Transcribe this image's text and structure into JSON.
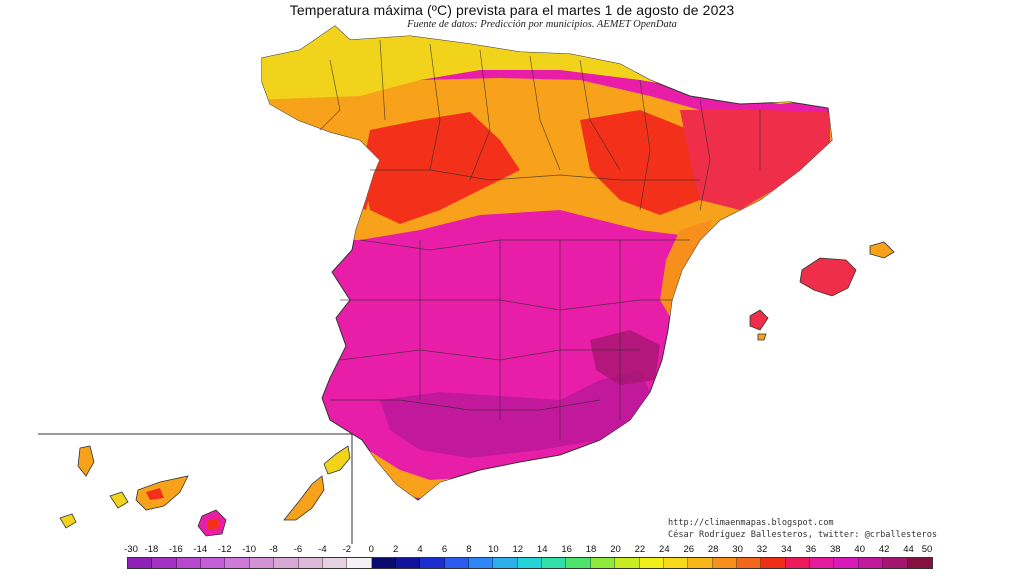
{
  "title": "Temperatura máxima (ºC) prevista para el martes 1 de agosto de 2023",
  "subtitle": "Fuente de datos: Predicción por municipios. AEMET OpenData",
  "credits": {
    "blog": "http://climaenmapas.blogspot.com",
    "author": "César Rodríguez Ballesteros, twitter: @crballesteros"
  },
  "legend": {
    "unit": "ºC",
    "tick_labels": [
      "-30",
      "-18",
      "-16",
      "-14",
      "-12",
      "-10",
      "-8",
      "-6",
      "-4",
      "-2",
      "0",
      "2",
      "4",
      "6",
      "8",
      "10",
      "12",
      "14",
      "16",
      "18",
      "20",
      "22",
      "24",
      "26",
      "28",
      "30",
      "32",
      "34",
      "36",
      "38",
      "40",
      "42",
      "44",
      "50"
    ],
    "colors": [
      "#8e22b8",
      "#a232c4",
      "#b548cf",
      "#c35fd6",
      "#cd7ad8",
      "#d492d6",
      "#d9a8d6",
      "#ddbbd8",
      "#e6d2e2",
      "#f5f0f4",
      "#0a0a6e",
      "#12129c",
      "#1c2ed0",
      "#2a5af0",
      "#2f86f7",
      "#2bb0ee",
      "#25d4d6",
      "#30e0a8",
      "#4ee36c",
      "#90e83a",
      "#c8ec22",
      "#f0ef1a",
      "#f7d81a",
      "#f7b51a",
      "#f68f1c",
      "#f3661c",
      "#ef2e1a",
      "#ec1a5c",
      "#e51a9c",
      "#d71ab8",
      "#c2189c",
      "#a3156e",
      "#861040"
    ]
  },
  "map": {
    "region_colors": {
      "north_coast": "#f2d31c",
      "north_interior": "#f7a21a",
      "hot_inland": "#f3311a",
      "very_hot": "#e81ea8",
      "extreme": "#c2189c",
      "catalonia": "#ef2e4a"
    }
  }
}
